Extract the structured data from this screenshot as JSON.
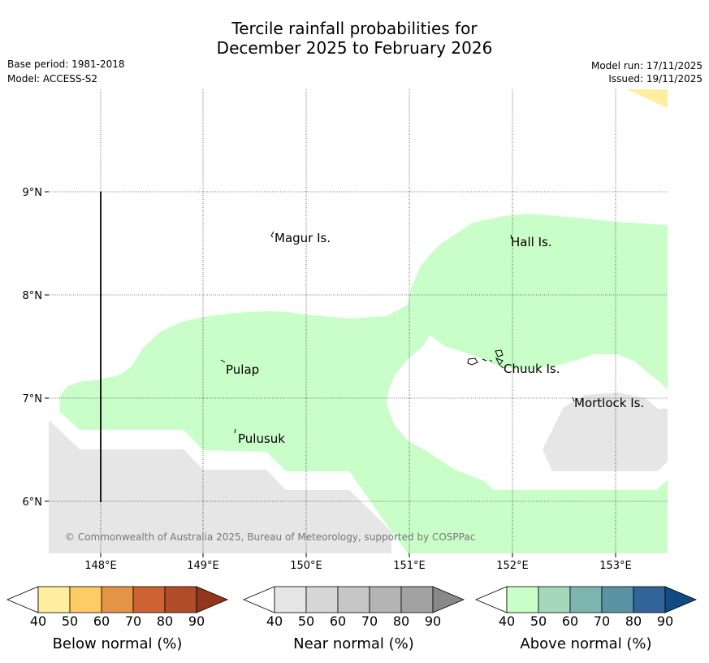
{
  "title": {
    "line1": "Tercile rainfall probabilities for",
    "line2": "December 2025 to February 2026"
  },
  "meta": {
    "base_period": "Base period: 1981-2018",
    "model": "Model: ACCESS-S2",
    "model_run": "Model run: 17/11/2025",
    "issued": "Issued: 19/11/2025"
  },
  "map": {
    "lat_labels": [
      "9°N",
      "8°N",
      "7°N",
      "6°N"
    ],
    "lon_labels": [
      "148°E",
      "149°E",
      "150°E",
      "151°E",
      "152°E",
      "153°E"
    ],
    "places": [
      "Magur Is.",
      "Hall Is.",
      "Pulap",
      "Chuuk Is.",
      "Mortlock Is.",
      "Pulusuk"
    ],
    "copyright": "© Commonwealth of Australia 2025, Bureau of Meteorology, supported by COSPPac"
  },
  "colorbars": [
    {
      "title": "Below normal (%)",
      "ticks": [
        "40",
        "50",
        "60",
        "70",
        "80",
        "90"
      ],
      "colors": [
        "#ffffff",
        "#ffeda0",
        "#fecb65",
        "#e29545",
        "#cc6331",
        "#b04c27",
        "#94361e"
      ]
    },
    {
      "title": "Near normal (%)",
      "ticks": [
        "40",
        "50",
        "60",
        "70",
        "80",
        "90"
      ],
      "colors": [
        "#ffffff",
        "#e6e6e6",
        "#d6d6d6",
        "#c6c6c6",
        "#b4b4b4",
        "#a2a2a2",
        "#888888"
      ]
    },
    {
      "title": "Above normal (%)",
      "ticks": [
        "40",
        "50",
        "60",
        "70",
        "80",
        "90"
      ],
      "colors": [
        "#ffffff",
        "#c9fec9",
        "#a5d7ba",
        "#7db4af",
        "#5a94a3",
        "#316499",
        "#114b82"
      ]
    }
  ]
}
